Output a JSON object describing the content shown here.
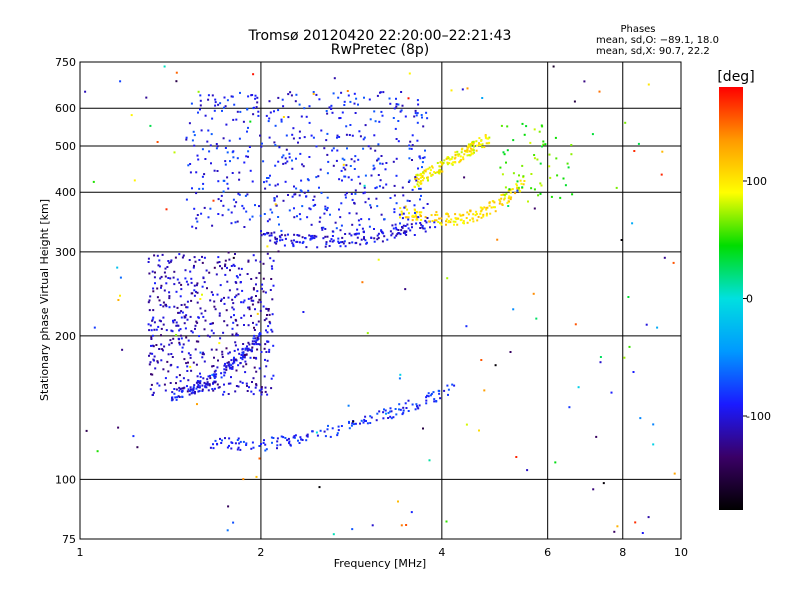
{
  "chart_data": {
    "type": "scatter",
    "title": "Tromsø 20120420 22:20:00–22:21:43",
    "subtitle": "RwPretec (8p)",
    "xlabel": "Frequency [MHz]",
    "ylabel": "Stationary phase Virtual Height [km]",
    "x_scale": "log",
    "y_scale": "log",
    "xlim": [
      1,
      10
    ],
    "ylim": [
      75,
      750
    ],
    "x_ticks": [
      1,
      2,
      4,
      6,
      8,
      10
    ],
    "y_ticks": [
      75,
      100,
      200,
      300,
      400,
      500,
      600,
      750
    ],
    "grid": true,
    "stats": {
      "heading": "Phases",
      "line_o": "mean, sd,O: −89.1, 18.0",
      "line_x": "mean, sd,X:  90.7, 22.2"
    },
    "colorbar": {
      "label": "[deg]",
      "range": [
        -180,
        180
      ],
      "ticks": [
        100,
        0,
        -100
      ],
      "colors": [
        "#000000",
        "#3a0066",
        "#1a1aff",
        "#0099ff",
        "#00e0e0",
        "#00dd00",
        "#ffff00",
        "#ff9900",
        "#ff0000"
      ]
    },
    "traces": [
      {
        "kind": "o-trace",
        "phase": -95,
        "points": [
          [
            1.42,
            150
          ],
          [
            1.5,
            153
          ],
          [
            1.6,
            158
          ],
          [
            1.7,
            166
          ],
          [
            1.8,
            175
          ],
          [
            1.9,
            186
          ],
          [
            1.95,
            193
          ],
          [
            2.0,
            200
          ]
        ]
      },
      {
        "kind": "o-trace",
        "phase": -85,
        "points": [
          [
            1.65,
            120
          ],
          [
            1.8,
            119
          ],
          [
            2.0,
            118
          ],
          [
            2.3,
            121
          ],
          [
            2.6,
            126
          ],
          [
            3.0,
            133
          ],
          [
            3.4,
            140
          ],
          [
            3.8,
            148
          ],
          [
            4.2,
            155
          ]
        ]
      },
      {
        "kind": "o-trace",
        "phase": -100,
        "points": [
          [
            2.0,
            325
          ],
          [
            2.2,
            318
          ],
          [
            2.5,
            315
          ],
          [
            2.8,
            318
          ],
          [
            3.2,
            325
          ],
          [
            3.6,
            335
          ],
          [
            3.9,
            345
          ]
        ]
      },
      {
        "kind": "x-trace",
        "phase": 105,
        "points": [
          [
            3.4,
            365
          ],
          [
            3.8,
            355
          ],
          [
            4.2,
            350
          ],
          [
            4.6,
            360
          ],
          [
            4.9,
            375
          ],
          [
            5.2,
            395
          ],
          [
            5.5,
            420
          ]
        ]
      },
      {
        "kind": "x-trace",
        "phase": 95,
        "points": [
          [
            3.6,
            420
          ],
          [
            3.9,
            445
          ],
          [
            4.2,
            470
          ],
          [
            4.5,
            495
          ],
          [
            4.8,
            520
          ]
        ]
      }
    ],
    "clusters": [
      {
        "kind": "F-region cloud",
        "x": [
          1.5,
          3.8
        ],
        "y": [
          330,
          650
        ],
        "phase": -90
      },
      {
        "kind": "lower cloud",
        "x": [
          1.3,
          2.1
        ],
        "y": [
          150,
          300
        ],
        "phase": -110
      },
      {
        "kind": "sparse high",
        "x": [
          5.0,
          6.6
        ],
        "y": [
          380,
          560
        ],
        "phase": 60
      }
    ]
  }
}
